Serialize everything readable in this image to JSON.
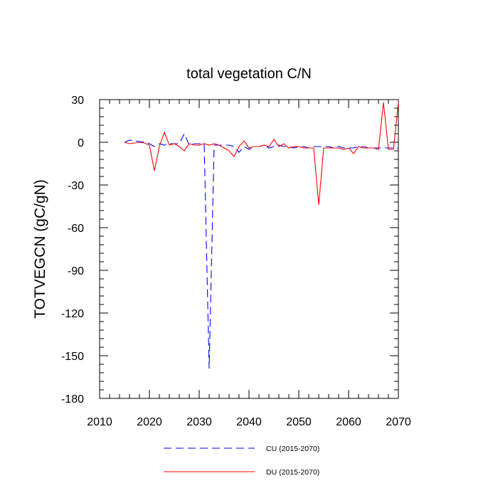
{
  "chart_data": {
    "type": "line",
    "title": "total vegetation C/N",
    "xlabel": "",
    "ylabel": "TOTVEGCN  (gC/gN)",
    "xlim": [
      2010,
      2070
    ],
    "ylim": [
      -180,
      30
    ],
    "xticks": [
      2010,
      2020,
      2030,
      2040,
      2050,
      2060,
      2070
    ],
    "yticks": [
      30,
      0,
      -30,
      -60,
      -90,
      -120,
      -150,
      -180
    ],
    "grid": false,
    "legend_position": "bottom",
    "series": [
      {
        "name": "CU (2015-2070)",
        "color": "#0000ff",
        "dash": "dashed",
        "x": [
          2015,
          2016,
          2017,
          2018,
          2019,
          2020,
          2021,
          2022,
          2023,
          2024,
          2025,
          2026,
          2027,
          2028,
          2029,
          2030,
          2031,
          2032,
          2033,
          2034,
          2035,
          2036,
          2037,
          2038,
          2039,
          2040,
          2041,
          2042,
          2043,
          2044,
          2045,
          2046,
          2047,
          2048,
          2049,
          2050,
          2051,
          2052,
          2053,
          2054,
          2055,
          2056,
          2057,
          2058,
          2059,
          2060,
          2061,
          2062,
          2063,
          2064,
          2065,
          2066,
          2067,
          2068,
          2069,
          2070
        ],
        "values": [
          0,
          1.5,
          1,
          0.5,
          0,
          -1,
          -3,
          -1,
          -2,
          -1,
          -1,
          -1,
          6,
          -2,
          -1,
          -1,
          -1,
          -159,
          -2,
          -2,
          -2,
          -2,
          -3,
          -7,
          -3,
          -5,
          -3,
          -3,
          -2,
          -4,
          -3,
          -2,
          -3,
          -3,
          -4,
          -3,
          -3,
          -4,
          -3,
          -3,
          -3,
          -3,
          -4,
          -3,
          -4,
          -4,
          -4,
          -3,
          -3,
          -4,
          -4,
          -4,
          -4,
          -4,
          -4,
          -4
        ]
      },
      {
        "name": "DU (2015-2070)",
        "color": "#ff0000",
        "dash": "solid",
        "x": [
          2015,
          2016,
          2017,
          2018,
          2019,
          2020,
          2021,
          2022,
          2023,
          2024,
          2025,
          2026,
          2027,
          2028,
          2029,
          2030,
          2031,
          2032,
          2033,
          2034,
          2035,
          2036,
          2037,
          2038,
          2039,
          2040,
          2041,
          2042,
          2043,
          2044,
          2045,
          2046,
          2047,
          2048,
          2049,
          2050,
          2051,
          2052,
          2053,
          2054,
          2055,
          2056,
          2057,
          2058,
          2059,
          2060,
          2061,
          2062,
          2063,
          2064,
          2065,
          2066,
          2067,
          2068,
          2069,
          2070
        ],
        "values": [
          0,
          -1,
          -0.5,
          0,
          -0.5,
          -2,
          -20,
          -3,
          7,
          -2,
          -1,
          -3,
          -6,
          -1,
          -2,
          -2,
          -1,
          -2,
          -1,
          -2,
          -4,
          -6,
          -10,
          -3,
          1,
          -4,
          -3,
          -3,
          -2,
          -3,
          2,
          -3,
          -1,
          -4,
          -3,
          -3,
          -4,
          -4,
          -4,
          -44,
          -4,
          -4,
          -4,
          -4,
          -5,
          -4,
          -8,
          -3,
          -4,
          -4,
          -4,
          -5,
          28,
          -5,
          -5,
          28
        ]
      }
    ]
  }
}
